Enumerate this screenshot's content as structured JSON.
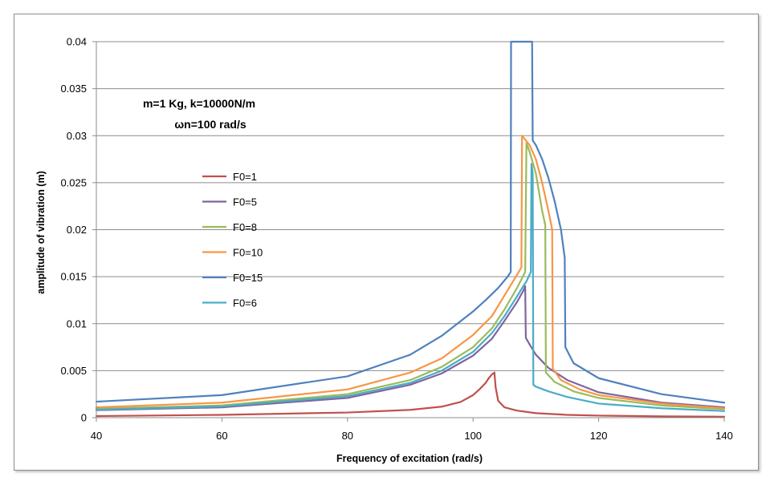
{
  "chart_data": {
    "type": "line",
    "title": "",
    "xlabel": "Frequency of excitation (rad/s)",
    "ylabel": "amplitude of vibration (m)",
    "xlim": [
      40,
      140
    ],
    "ylim": [
      0,
      0.04
    ],
    "xticks": [
      40,
      60,
      80,
      100,
      120,
      140
    ],
    "xtick_labels": [
      "40",
      "60",
      "80",
      "100",
      "120",
      "140"
    ],
    "yticks": [
      0,
      0.005,
      0.01,
      0.015,
      0.02,
      0.025,
      0.03,
      0.035,
      0.04
    ],
    "ytick_labels": [
      "0",
      "0.005",
      "0.01",
      "0.015",
      "0.02",
      "0.025",
      "0.03",
      "0.035",
      "0.04"
    ],
    "grid": "horizontal",
    "annotations": [
      "m=1 Kg, k=10000N/m",
      "ωn=100 rad/s"
    ],
    "legend_position": "left-middle",
    "series": [
      {
        "name": "F0=1",
        "color": "#C0504D",
        "x": [
          40,
          60,
          80,
          90,
          95,
          98,
          100,
          101,
          102,
          102.5,
          103,
          103.4,
          103.6,
          104,
          105,
          107,
          110,
          115,
          120,
          130,
          140
        ],
        "y": [
          0.00017,
          0.0003,
          0.00055,
          0.00083,
          0.00117,
          0.00167,
          0.0024,
          0.003,
          0.0037,
          0.0042,
          0.0046,
          0.0048,
          0.0032,
          0.0018,
          0.0011,
          0.00075,
          0.00048,
          0.0003,
          0.00022,
          0.00014,
          0.0001
        ]
      },
      {
        "name": "F0=5",
        "color": "#8064A2",
        "x": [
          40,
          60,
          80,
          90,
          95,
          100,
          103,
          105,
          107,
          108,
          108.3,
          108.4,
          109,
          110,
          112,
          115,
          120,
          130,
          140
        ],
        "y": [
          0.0008,
          0.0011,
          0.0021,
          0.0035,
          0.0047,
          0.0066,
          0.0084,
          0.0103,
          0.0123,
          0.0135,
          0.014,
          0.0085,
          0.0078,
          0.0067,
          0.0053,
          0.004,
          0.0027,
          0.0016,
          0.0011
        ]
      },
      {
        "name": "F0=8",
        "color": "#9BBB59",
        "x": [
          40,
          60,
          80,
          90,
          95,
          100,
          103,
          105,
          107,
          108.3,
          108.5,
          109,
          110,
          111,
          111.5,
          111.6,
          113,
          116,
          120,
          130,
          140
        ],
        "y": [
          0.00095,
          0.0013,
          0.0025,
          0.004,
          0.0054,
          0.0075,
          0.0095,
          0.0115,
          0.0138,
          0.0155,
          0.0292,
          0.0283,
          0.026,
          0.022,
          0.0205,
          0.0048,
          0.0038,
          0.0028,
          0.0021,
          0.0013,
          0.0009
        ]
      },
      {
        "name": "F0=10",
        "color": "#F79646",
        "x": [
          40,
          60,
          80,
          90,
          95,
          100,
          103,
          105,
          107,
          107.7,
          107.8,
          109,
          110,
          111,
          112,
          112.6,
          112.7,
          114,
          117,
          120,
          130,
          140
        ],
        "y": [
          0.0011,
          0.0016,
          0.003,
          0.0048,
          0.0063,
          0.0088,
          0.0108,
          0.013,
          0.0152,
          0.016,
          0.03,
          0.029,
          0.0275,
          0.025,
          0.022,
          0.02,
          0.0052,
          0.004,
          0.003,
          0.0024,
          0.0015,
          0.001
        ]
      },
      {
        "name": "F0=15",
        "color": "#4F81BD",
        "x": [
          40,
          60,
          80,
          90,
          95,
          100,
          102,
          104,
          105.5,
          106,
          106.05,
          109.4,
          109.5,
          110,
          111,
          112,
          113,
          114,
          114.6,
          114.7,
          116,
          120,
          130,
          140
        ],
        "y": [
          0.0017,
          0.0024,
          0.0044,
          0.0067,
          0.0087,
          0.0113,
          0.0125,
          0.0138,
          0.015,
          0.0155,
          0.04,
          0.04,
          0.0295,
          0.029,
          0.0275,
          0.0255,
          0.023,
          0.02,
          0.017,
          0.0075,
          0.0058,
          0.0042,
          0.0025,
          0.0016
        ]
      },
      {
        "name": "F0=6",
        "color": "#4BACC6",
        "x": [
          40,
          60,
          80,
          90,
          95,
          100,
          103,
          105,
          107,
          108,
          108.5,
          109.2,
          109.3,
          109.5,
          109.6,
          110,
          112,
          115,
          120,
          130,
          140
        ],
        "y": [
          0.00085,
          0.0012,
          0.0023,
          0.0037,
          0.005,
          0.007,
          0.009,
          0.0108,
          0.0129,
          0.014,
          0.0145,
          0.0155,
          0.027,
          0.026,
          0.0035,
          0.0033,
          0.0028,
          0.0022,
          0.0015,
          0.001,
          0.0007
        ]
      }
    ]
  }
}
